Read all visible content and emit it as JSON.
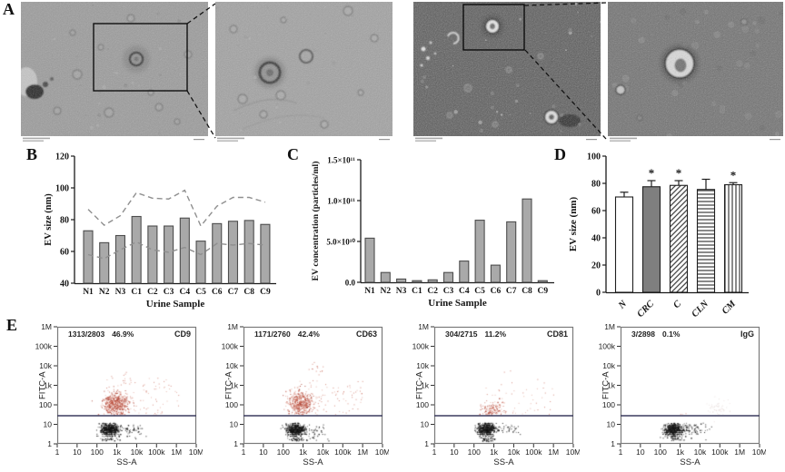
{
  "panels": {
    "a": {
      "label": "A"
    },
    "b": {
      "label": "B"
    },
    "c": {
      "label": "C"
    },
    "d": {
      "label": "D"
    },
    "e": {
      "label": "E"
    }
  },
  "chart_data": [
    {
      "panel": "B",
      "type": "bar",
      "ylabel": "EV size (nm)",
      "xlabel": "Urine Sample",
      "ylim": [
        40,
        120
      ],
      "yticks": [
        40,
        60,
        80,
        100,
        120
      ],
      "grid": false,
      "categories": [
        "N1",
        "N2",
        "N3",
        "C1",
        "C2",
        "C3",
        "C4",
        "C5",
        "C6",
        "C7",
        "C8",
        "C9"
      ],
      "values": [
        73,
        65.5,
        70,
        82,
        76,
        76,
        81,
        66.5,
        77.5,
        79,
        79.5,
        77
      ],
      "upper_dashed": [
        86.5,
        76.5,
        82.5,
        97,
        93.5,
        93,
        98.5,
        76,
        88.5,
        94,
        94,
        91
      ],
      "lower_dashed": [
        58,
        55.5,
        61,
        66,
        61,
        59.5,
        62.5,
        58,
        65,
        64,
        65,
        64
      ],
      "bar_color": "#a9a9a9",
      "bar_border": "#4d4d4d",
      "dash_color": "#8f8f8f"
    },
    {
      "panel": "C",
      "type": "bar",
      "ylabel": "EV concentration (particles/ml)",
      "xlabel": "Urine Sample",
      "ylim": [
        0,
        150000000000
      ],
      "ytick_labels": [
        "0.0",
        "5.0×10¹⁰",
        "1.0×10¹¹",
        "1.5×10¹¹"
      ],
      "ytick_values_1e10": [
        0,
        5,
        10,
        15
      ],
      "categories": [
        "N1",
        "N2",
        "N3",
        "C1",
        "C2",
        "C3",
        "C4",
        "C5",
        "C6",
        "C7",
        "C8",
        "C9"
      ],
      "values_1e10": [
        5.4,
        1.2,
        0.4,
        0.2,
        0.3,
        1.2,
        2.6,
        7.6,
        2.1,
        7.4,
        10.2,
        0.2
      ],
      "bar_color": "#a9a9a9",
      "bar_border": "#4d4d4d"
    },
    {
      "panel": "D",
      "type": "bar",
      "ylabel": "EV size (nm)",
      "xlabel": "",
      "ylim": [
        0,
        100
      ],
      "yticks": [
        0,
        20,
        40,
        60,
        80,
        100
      ],
      "categories": [
        "N",
        "CRC",
        "C",
        "CLN",
        "CM"
      ],
      "values": [
        70,
        77.5,
        78.5,
        75.5,
        79
      ],
      "errors": [
        3.5,
        4.5,
        3.5,
        7.5,
        1.5
      ],
      "significance": [
        "",
        "*",
        "*",
        "",
        "*"
      ],
      "bar_patterns": [
        "white",
        "solid-gray",
        "diagonal-hatch",
        "horizontal-lines",
        "vertical-lines"
      ],
      "solid_gray": "#7f7f7f",
      "bar_border": "#1f1f1f"
    },
    {
      "panel": "E",
      "type": "scatter-flow",
      "ylabel": "FITC-A",
      "xlabel": "SS-A",
      "ytick_labels": [
        "1M",
        "100k",
        "10k",
        "1k",
        "100",
        "10",
        "1"
      ],
      "xtick_labels": [
        "1",
        "10",
        "100",
        "1k",
        "10k",
        "100k",
        "1M",
        "10M"
      ],
      "gate_fitc": 25,
      "colors": {
        "positive": "#b14a3a",
        "negative": "#1c1c1c",
        "gate": "#3c3c5e",
        "frame": "#7a7a7a"
      },
      "neg": {
        "n": 640,
        "cx": 2.62,
        "sx": 0.22,
        "bands": [
          0.42,
          0.52,
          0.62,
          0.71,
          0.8,
          0.89,
          0.98,
          1.06
        ]
      },
      "plots": [
        {
          "counts": "1313/2803",
          "percent": "46.9%",
          "marker": "CD9",
          "pos": {
            "n": 480,
            "cx": 2.92,
            "cy": 2.08,
            "sx": 0.32,
            "sy": 0.27
          },
          "spread": {
            "n": 85,
            "x0": 2.4,
            "x1": 6.1,
            "y0": 1.5,
            "y1": 3.4
          },
          "tall": {
            "n": 12,
            "x0": 2.7,
            "x1": 3.9,
            "y0": 3.0,
            "y1": 3.8
          }
        },
        {
          "counts": "1171/2760",
          "percent": "42.4%",
          "marker": "CD63",
          "pos": {
            "n": 450,
            "cx": 2.84,
            "cy": 2.12,
            "sx": 0.3,
            "sy": 0.3
          },
          "spread": {
            "n": 85,
            "x0": 2.4,
            "x1": 6.0,
            "y0": 1.5,
            "y1": 3.3
          },
          "tall": {
            "n": 16,
            "x0": 3.1,
            "x1": 4.0,
            "y0": 3.0,
            "y1": 4.2
          }
        },
        {
          "counts": "304/2715",
          "percent": "11.2%",
          "marker": "CD81",
          "pos": {
            "n": 120,
            "cx": 2.92,
            "cy": 1.78,
            "sx": 0.33,
            "sy": 0.22
          },
          "spread": {
            "n": 50,
            "x0": 2.5,
            "x1": 6.0,
            "y0": 1.5,
            "y1": 2.9
          },
          "tall": {
            "n": 6,
            "x0": 3.3,
            "x1": 5.8,
            "y0": 2.9,
            "y1": 4.1
          }
        },
        {
          "counts": "3/2898",
          "percent": "0.1%",
          "marker": "IgG",
          "pos": {
            "n": 0,
            "cx": 3.0,
            "cy": 1.6,
            "sx": 0.2,
            "sy": 0.1
          },
          "spread": {
            "n": 3,
            "x0": 2.8,
            "x1": 3.6,
            "y0": 1.5,
            "y1": 1.7
          },
          "tall": {
            "n": 0,
            "x0": 0,
            "x1": 0,
            "y0": 0,
            "y1": 0
          },
          "ghost": {
            "n": 55,
            "cx": 4.9,
            "cy": 1.85,
            "sx": 0.3,
            "sy": 0.22
          }
        }
      ]
    }
  ]
}
